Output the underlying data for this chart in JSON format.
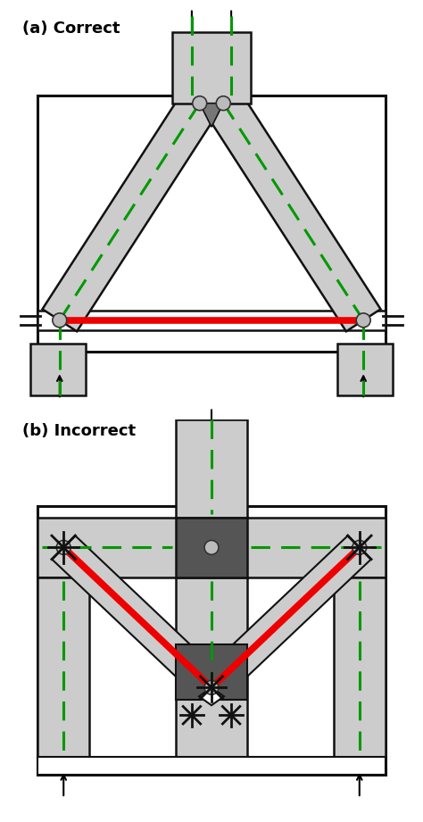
{
  "title_a": "(a) Correct",
  "title_b": "(b) Incorrect",
  "bg_color": "#ffffff",
  "stipple": "#cccccc",
  "dark_stipple": "#999999",
  "very_dark": "#111111",
  "red": "#ee0000",
  "green": "#009900",
  "node_fill": "#bbbbbb",
  "node_edge": "#333333",
  "white": "#ffffff"
}
